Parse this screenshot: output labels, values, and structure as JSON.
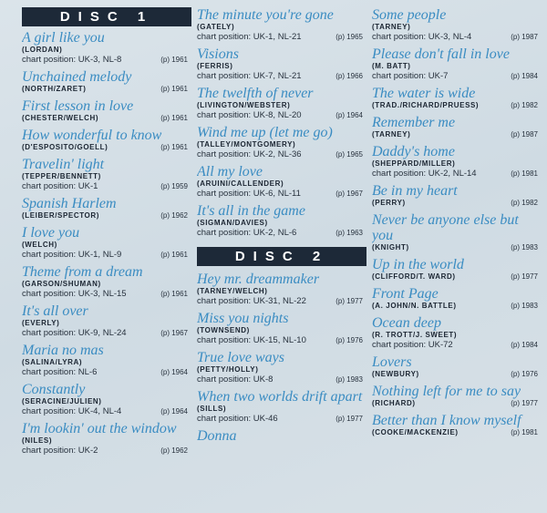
{
  "columns": [
    [
      {
        "heading": "DISC 1"
      },
      {
        "title": "A girl like you",
        "writers": "(LORDAN)",
        "chart": "chart position: UK-3, NL-8",
        "year": "(p) 1961"
      },
      {
        "title": "Unchained melody",
        "writers": "(NORTH/ZARET)",
        "year": "(p) 1961"
      },
      {
        "title": "First lesson in love",
        "writers": "(CHESTER/WELCH)",
        "year": "(p) 1961"
      },
      {
        "title": "How wonderful to know",
        "writers": "(D'ESPOSITO/GOELL)",
        "year": "(p) 1961"
      },
      {
        "title": "Travelin' light",
        "writers": "(TEPPER/BENNETT)",
        "chart": "chart position: UK-1",
        "year": "(p) 1959"
      },
      {
        "title": "Spanish Harlem",
        "writers": "(LEIBER/SPECTOR)",
        "year": "(p) 1962"
      },
      {
        "title": "I love you",
        "writers": "(WELCH)",
        "chart": "chart position: UK-1, NL-9",
        "year": "(p) 1961"
      },
      {
        "title": "Theme from a dream",
        "writers": "(GARSON/SHUMAN)",
        "chart": "chart position: UK-3, NL-15",
        "year": "(p) 1961"
      },
      {
        "title": "It's all over",
        "writers": "(EVERLY)",
        "chart": "chart position: UK-9, NL-24",
        "year": "(p) 1967"
      },
      {
        "title": "Maria no mas",
        "writers": "(SALINA/LYRA)",
        "chart": "chart position: NL-6",
        "year": "(p) 1964"
      },
      {
        "title": "Constantly",
        "writers": "(SERACINE/JULIEN)",
        "chart": "chart position: UK-4, NL-4",
        "year": "(p) 1964"
      },
      {
        "title": "I'm lookin' out the window",
        "writers": "(NILES)",
        "chart": "chart position: UK-2",
        "year": "(p) 1962"
      }
    ],
    [
      {
        "title": "The minute you're gone",
        "writers": "(GATELY)",
        "chart": "chart position: UK-1, NL-21",
        "year": "(p) 1965"
      },
      {
        "title": "Visions",
        "writers": "(FERRIS)",
        "chart": "chart position: UK-7, NL-21",
        "year": "(p) 1966"
      },
      {
        "title": "The twelfth of never",
        "writers": "(LIVINGTON/WEBSTER)",
        "chart": "chart position: UK-8, NL-20",
        "year": "(p) 1964"
      },
      {
        "title": "Wind me up (let me go)",
        "writers": "(TALLEY/MONTGOMERY)",
        "chart": "chart position: UK-2, NL-36",
        "year": "(p) 1965"
      },
      {
        "title": "All my love",
        "writers": "(ARUINI/CALLENDER)",
        "chart": "chart position: UK-6, NL-11",
        "year": "(p) 1967"
      },
      {
        "title": "It's all in the game",
        "writers": "(SIGMAN/DAVIES)",
        "chart": "chart position: UK-2, NL-6",
        "year": "(p) 1963"
      },
      {
        "heading": "DISC 2"
      },
      {
        "title": "Hey mr. dreammaker",
        "writers": "(TARNEY/WELCH)",
        "chart": "chart position: UK-31, NL-22",
        "year": "(p) 1977"
      },
      {
        "title": "Miss you nights",
        "writers": "(TOWNSEND)",
        "chart": "chart position: UK-15, NL-10",
        "year": "(p) 1976"
      },
      {
        "title": "True love ways",
        "writers": "(PETTY/HOLLY)",
        "chart": "chart position: UK-8",
        "year": "(p) 1983"
      },
      {
        "title": "When two worlds drift apart",
        "writers": "(SILLS)",
        "chart": "chart position: UK-46",
        "year": "(p) 1977"
      },
      {
        "title": "Donna"
      }
    ],
    [
      {
        "title": "Some people",
        "writers": "(TARNEY)",
        "chart": "chart position: UK-3, NL-4",
        "year": "(p) 1987"
      },
      {
        "title": "Please don't fall in love",
        "writers": "(M. BATT)",
        "chart": "chart position: UK-7",
        "year": "(p) 1984"
      },
      {
        "title": "The water is wide",
        "writers": "(TRAD./RICHARD/PRUESS)",
        "year": "(p) 1982"
      },
      {
        "title": "Remember me",
        "writers": "(TARNEY)",
        "year": "(p) 1987"
      },
      {
        "title": "Daddy's home",
        "writers": "(SHEPPARD/MILLER)",
        "chart": "chart position: UK-2, NL-14",
        "year": "(p) 1981"
      },
      {
        "title": "Be in my heart",
        "writers": "(PERRY)",
        "year": "(p) 1982"
      },
      {
        "title": "Never be anyone else but you",
        "writers": "(KNIGHT)",
        "year": "(p) 1983"
      },
      {
        "title": "Up in the world",
        "writers": "(CLIFFORD/T. WARD)",
        "year": "(p) 1977"
      },
      {
        "title": "Front Page",
        "writers": "(A. JOHN/N. BATTLE)",
        "year": "(p) 1983"
      },
      {
        "title": "Ocean deep",
        "writers": "(R. TROTT/J. SWEET)",
        "chart": "chart position: UK-72",
        "year": "(p) 1984"
      },
      {
        "title": "Lovers",
        "writers": "(NEWBURY)",
        "year": "(p) 1976"
      },
      {
        "title": "Nothing left for me to say",
        "writers": "(RICHARD)",
        "year": "(p) 1977"
      },
      {
        "title": "Better than I know myself",
        "writers": "(COOKE/MACKENZIE)",
        "year": "(p) 1981"
      }
    ]
  ]
}
